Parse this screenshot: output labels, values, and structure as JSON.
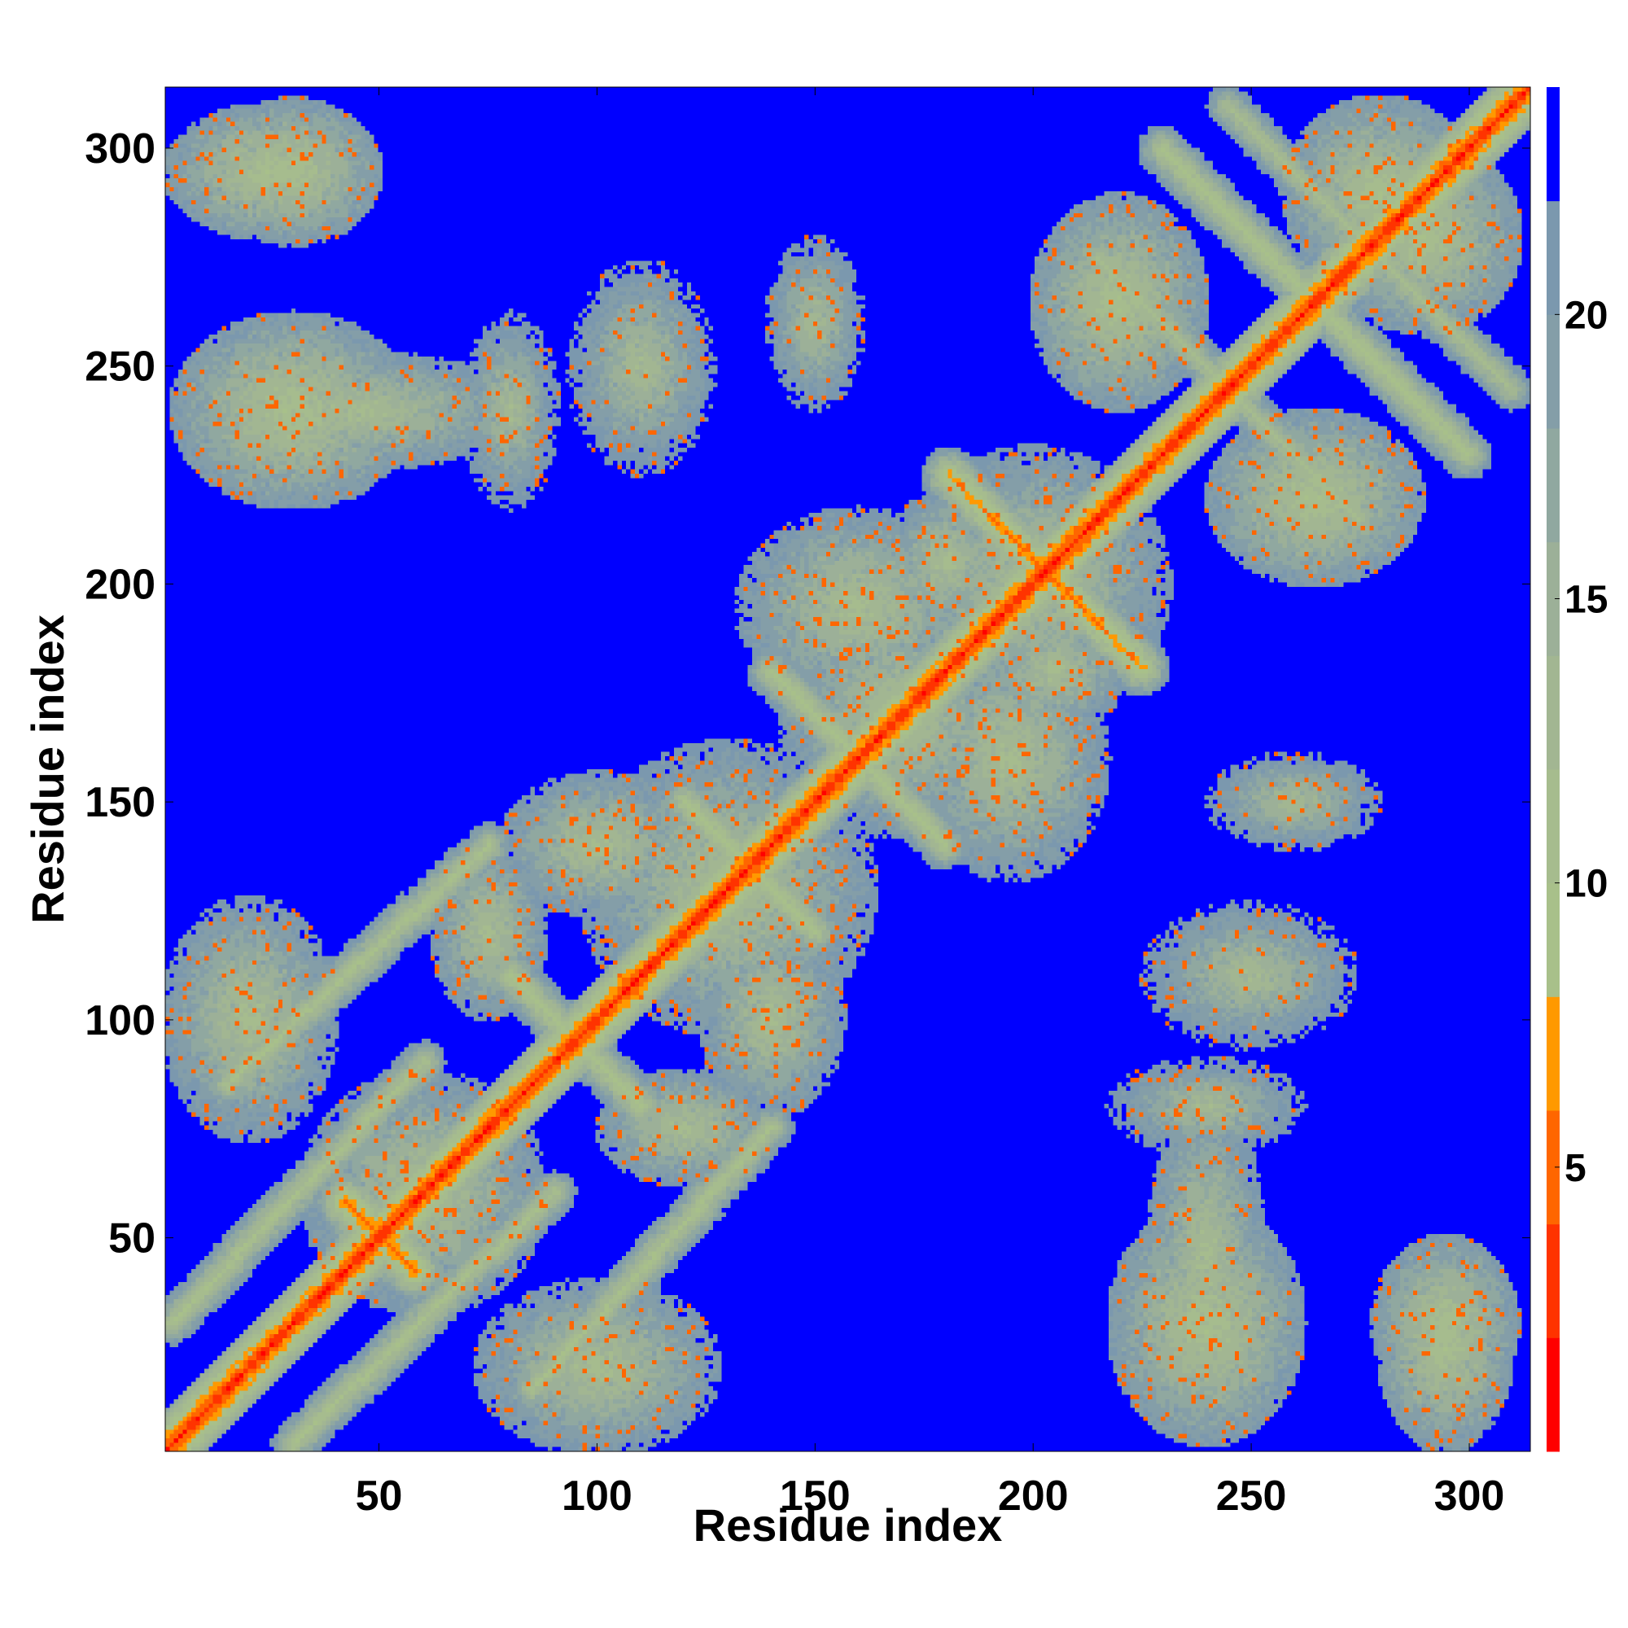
{
  "chart_data": {
    "type": "heatmap",
    "title": "",
    "xlabel": "Residue index",
    "ylabel": "Residue index",
    "xlim": [
      1,
      314
    ],
    "ylim": [
      1,
      314
    ],
    "x_ticks": [
      50,
      100,
      150,
      200,
      250,
      300
    ],
    "y_ticks": [
      50,
      100,
      150,
      200,
      250,
      300
    ],
    "colorbar": {
      "range": [
        0,
        24
      ],
      "ticks": [
        5,
        10,
        15,
        20
      ],
      "levels": [
        {
          "from": 0,
          "to": 2,
          "color": "#ff0000"
        },
        {
          "from": 2,
          "to": 4,
          "color": "#ff3300"
        },
        {
          "from": 4,
          "to": 6,
          "color": "#ff6600"
        },
        {
          "from": 6,
          "to": 8,
          "color": "#ff9900"
        },
        {
          "from": 8,
          "to": 10,
          "color": "#a8c08a"
        },
        {
          "from": 10,
          "to": 12,
          "color": "#a6bc8e"
        },
        {
          "from": 12,
          "to": 14,
          "color": "#a2b692"
        },
        {
          "from": 14,
          "to": 16,
          "color": "#9cb098"
        },
        {
          "from": 16,
          "to": 18,
          "color": "#90a8a0"
        },
        {
          "from": 18,
          "to": 20,
          "color": "#849ea8"
        },
        {
          "from": 20,
          "to": 22,
          "color": "#7b98ae"
        },
        {
          "from": 22,
          "to": 24,
          "color": "#0000ff"
        }
      ]
    },
    "background_value": 24,
    "grid": false,
    "diagonal_value": 0,
    "contact_bands": [
      {
        "name": "helix-diagonal",
        "x0": 1,
        "y0": 1,
        "x1": 314,
        "y1": 314,
        "value": 1
      },
      {
        "name": "antidiag-50",
        "x0": 42,
        "y0": 58,
        "x1": 58,
        "y1": 42,
        "value": 4
      },
      {
        "name": "antidiag-200",
        "x0": 186,
        "y0": 220,
        "x1": 225,
        "y1": 181,
        "value": 5
      },
      {
        "name": "parallel-low-1",
        "x0": 2,
        "y0": 30,
        "x1": 60,
        "y1": 90,
        "value": 9
      },
      {
        "name": "parallel-low-2",
        "x0": 85,
        "y0": 15,
        "x1": 140,
        "y1": 75,
        "value": 9
      },
      {
        "name": "parallel-high-1",
        "x0": 30,
        "y0": 2,
        "x1": 90,
        "y1": 60,
        "value": 9
      },
      {
        "name": "parallel-high-2",
        "x0": 15,
        "y0": 85,
        "x1": 75,
        "y1": 140,
        "value": 9
      },
      {
        "name": "antiparallel-1",
        "x0": 110,
        "y0": 80,
        "x1": 80,
        "y1": 110,
        "value": 8
      },
      {
        "name": "antiparallel-2",
        "x0": 180,
        "y0": 140,
        "x1": 140,
        "y1": 180,
        "value": 8
      },
      {
        "name": "antiparallel-3",
        "x0": 300,
        "y0": 230,
        "x1": 230,
        "y1": 300,
        "value": 8
      },
      {
        "name": "antiparallel-4",
        "x0": 120,
        "y0": 150,
        "x1": 150,
        "y1": 120,
        "value": 8
      },
      {
        "name": "cross-250",
        "x0": 245,
        "y0": 310,
        "x1": 310,
        "y1": 245,
        "value": 10
      },
      {
        "name": "cross-250b",
        "x0": 215,
        "y0": 275,
        "x1": 275,
        "y1": 215,
        "value": 10
      }
    ],
    "contact_blobs": [
      {
        "x": 25,
        "y": 295,
        "rx": 22,
        "ry": 14,
        "value": 11
      },
      {
        "x": 295,
        "y": 25,
        "rx": 14,
        "ry": 22,
        "value": 11
      },
      {
        "x": 45,
        "y": 240,
        "rx": 35,
        "ry": 12,
        "value": 12
      },
      {
        "x": 240,
        "y": 45,
        "rx": 12,
        "ry": 35,
        "value": 12
      },
      {
        "x": 240,
        "y": 30,
        "rx": 20,
        "ry": 25,
        "value": 11
      },
      {
        "x": 30,
        "y": 240,
        "rx": 25,
        "ry": 20,
        "value": 11
      },
      {
        "x": 295,
        "y": 30,
        "rx": 15,
        "ry": 18,
        "value": 11
      },
      {
        "x": 30,
        "y": 295,
        "rx": 18,
        "ry": 15,
        "value": 11
      },
      {
        "x": 100,
        "y": 140,
        "rx": 20,
        "ry": 15,
        "value": 12
      },
      {
        "x": 140,
        "y": 100,
        "rx": 15,
        "ry": 20,
        "value": 12
      },
      {
        "x": 160,
        "y": 195,
        "rx": 25,
        "ry": 20,
        "value": 12
      },
      {
        "x": 195,
        "y": 160,
        "rx": 20,
        "ry": 25,
        "value": 12
      },
      {
        "x": 20,
        "y": 100,
        "rx": 18,
        "ry": 25,
        "value": 12
      },
      {
        "x": 100,
        "y": 20,
        "rx": 25,
        "ry": 18,
        "value": 12
      },
      {
        "x": 260,
        "y": 150,
        "rx": 18,
        "ry": 10,
        "value": 13
      },
      {
        "x": 150,
        "y": 260,
        "rx": 10,
        "ry": 18,
        "value": 13
      },
      {
        "x": 250,
        "y": 110,
        "rx": 22,
        "ry": 15,
        "value": 13
      },
      {
        "x": 110,
        "y": 250,
        "rx": 15,
        "ry": 22,
        "value": 13
      },
      {
        "x": 240,
        "y": 80,
        "rx": 20,
        "ry": 10,
        "value": 13
      },
      {
        "x": 80,
        "y": 240,
        "rx": 10,
        "ry": 20,
        "value": 13
      },
      {
        "x": 265,
        "y": 220,
        "rx": 22,
        "ry": 18,
        "value": 11
      },
      {
        "x": 220,
        "y": 265,
        "rx": 18,
        "ry": 22,
        "value": 11
      },
      {
        "x": 290,
        "y": 280,
        "rx": 20,
        "ry": 20,
        "value": 11
      },
      {
        "x": 280,
        "y": 290,
        "rx": 20,
        "ry": 20,
        "value": 11
      },
      {
        "x": 205,
        "y": 180,
        "rx": 15,
        "ry": 12,
        "value": 12
      },
      {
        "x": 180,
        "y": 205,
        "rx": 12,
        "ry": 15,
        "value": 12
      },
      {
        "x": 120,
        "y": 75,
        "rx": 18,
        "ry": 12,
        "value": 12
      },
      {
        "x": 75,
        "y": 120,
        "rx": 12,
        "ry": 18,
        "value": 12
      },
      {
        "x": 60,
        "y": 60,
        "rx": 25,
        "ry": 25,
        "value": 12
      },
      {
        "x": 130,
        "y": 130,
        "rx": 30,
        "ry": 30,
        "value": 12
      },
      {
        "x": 200,
        "y": 200,
        "rx": 28,
        "ry": 28,
        "value": 12
      },
      {
        "x": 170,
        "y": 170,
        "rx": 25,
        "ry": 25,
        "value": 12
      }
    ]
  }
}
